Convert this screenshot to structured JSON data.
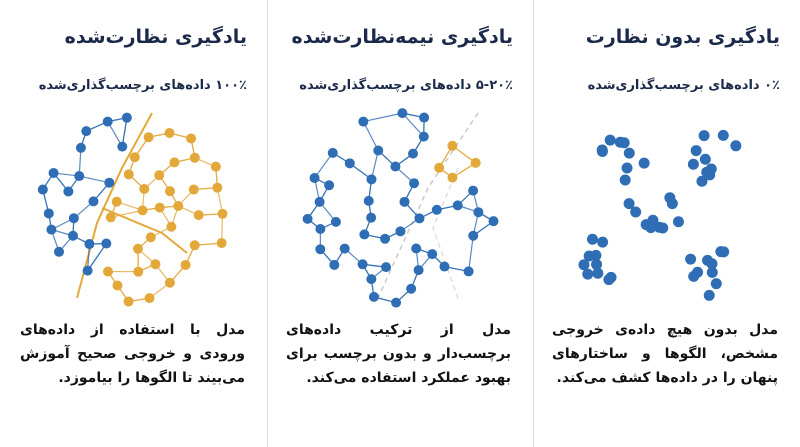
{
  "columns": [
    {
      "title": "یادگیری بدون نظارت",
      "subtitle": "۰٪ داده‌های برچسب‌گذاری‌شده",
      "description": "مدل بدون هیچ داده‌ی خروجی مشخص، الگوها و ساختارهای پنهان را در داده‌ها کشف می‌کند."
    },
    {
      "title": "یادگیری نیمه‌نظارت‌شده",
      "subtitle": "۵-۲۰٪ داده‌های برچسب‌گذاری‌شده",
      "description": "مدل از ترکیب داده‌های برچسب‌دار و بدون برچسب برای بهبود عملکرد استفاده می‌کند."
    },
    {
      "title": "یادگیری نظارت‌شده",
      "subtitle": "۱۰۰٪ داده‌های برچسب‌گذاری‌شده",
      "description": "مدل با استفاده از داده‌های ورودی و خروجی صحیح آموزش می‌بیند تا الگوها را بیاموزد."
    }
  ]
}
